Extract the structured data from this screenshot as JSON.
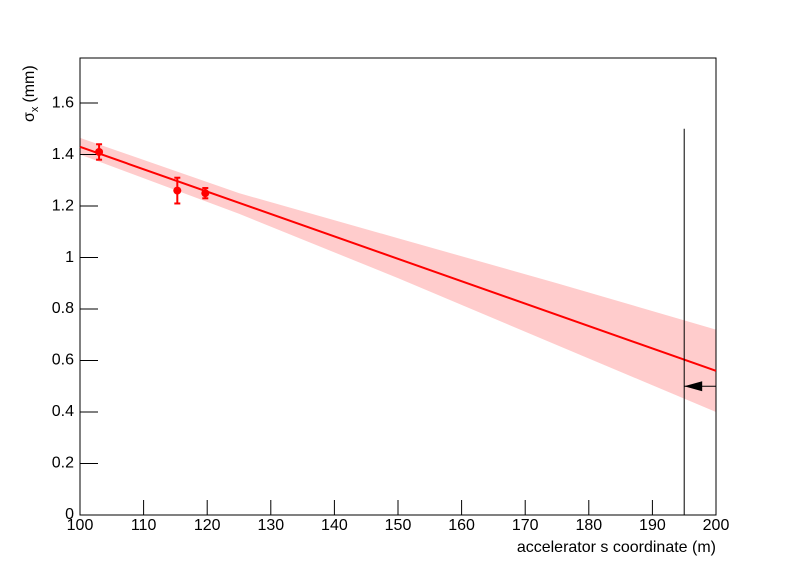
{
  "chart_data": {
    "type": "scatter",
    "xlabel": "accelerator s coordinate (m)",
    "ylabel": [
      "σ",
      "x",
      "(mm)"
    ],
    "xlim": [
      100,
      200
    ],
    "ylim": [
      0,
      1.775
    ],
    "xticks": [
      100,
      110,
      120,
      130,
      140,
      150,
      160,
      170,
      180,
      190,
      200
    ],
    "yticks": [
      0,
      0.2,
      0.4,
      0.6,
      0.8,
      1,
      1.2,
      1.4,
      1.6
    ],
    "series": [
      {
        "color": "#ff0000",
        "x": [
          103,
          115.3,
          119.7
        ],
        "values": [
          1.41,
          1.26,
          1.25
        ],
        "errors": [
          0.03,
          0.05,
          0.02
        ]
      }
    ],
    "fit": {
      "color": "#ff0000",
      "x": [
        100,
        200
      ],
      "values": [
        1.43,
        0.56
      ]
    },
    "band": {
      "color": "#ffcccc",
      "x": [
        100,
        125,
        150,
        175,
        200
      ],
      "upper": [
        1.465,
        1.25,
        1.075,
        0.9,
        0.72
      ],
      "lower": [
        1.4,
        1.17,
        0.92,
        0.66,
        0.4
      ]
    },
    "marker": {
      "x": 195,
      "top": 1.5,
      "arrow_y": 0.5
    }
  }
}
